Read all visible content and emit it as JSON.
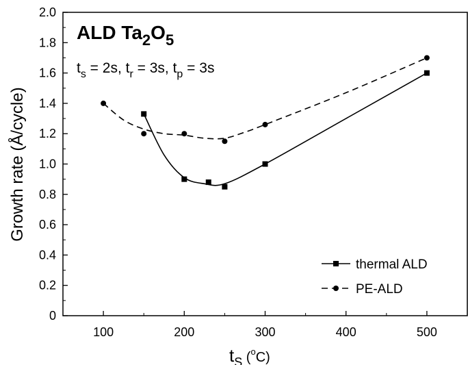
{
  "chart_data": {
    "type": "line",
    "title_main": "ALD Ta",
    "title_sub1": "2",
    "title_mid": "O",
    "title_sub2": "5",
    "params": {
      "ts_main": "t",
      "ts_sub": "s",
      "ts_val": " = 2s, ",
      "tr_main": "t",
      "tr_sub": "r",
      "tr_val": " = 3s, ",
      "tp_main": "t",
      "tp_sub": "p",
      "tp_val": " = 3s"
    },
    "ylabel": "Growth rate (Å/cycle)",
    "xlabel_main": "t",
    "xlabel_sub": "S",
    "xlabel_open": " (",
    "xlabel_deg": "o",
    "xlabel_unit": "C)",
    "xlim": [
      50,
      550
    ],
    "ylim": [
      0,
      2.0
    ],
    "x_ticks": [
      100,
      200,
      300,
      400,
      500
    ],
    "x_tick_labels": [
      "100",
      "200",
      "300",
      "400",
      "500"
    ],
    "y_ticks": [
      0,
      0.2,
      0.4,
      0.6,
      0.8,
      1.0,
      1.2,
      1.4,
      1.6,
      1.8,
      2.0
    ],
    "y_tick_labels": [
      "0",
      "0.2",
      "0.4",
      "0.6",
      "0.8",
      "1.0",
      "1.2",
      "1.4",
      "1.6",
      "1.8",
      "2.0"
    ],
    "legend_position": "bottom-right",
    "grid": false,
    "series": [
      {
        "name": "thermal ALD",
        "marker": "square",
        "line_style": "solid",
        "color": "#000000",
        "x": [
          150,
          200,
          230,
          250,
          300,
          500
        ],
        "y": [
          1.33,
          0.9,
          0.88,
          0.85,
          1.0,
          1.6
        ],
        "curve": [
          [
            150,
            1.33
          ],
          [
            175,
            1.06
          ],
          [
            200,
            0.91
          ],
          [
            225,
            0.87
          ],
          [
            250,
            0.87
          ],
          [
            300,
            1.0
          ],
          [
            400,
            1.3
          ],
          [
            500,
            1.6
          ]
        ]
      },
      {
        "name": "PE-ALD",
        "marker": "circle",
        "line_style": "dashed",
        "color": "#000000",
        "x": [
          100,
          150,
          200,
          250,
          300,
          500
        ],
        "y": [
          1.4,
          1.2,
          1.2,
          1.15,
          1.26,
          1.7
        ],
        "curve": [
          [
            100,
            1.4
          ],
          [
            125,
            1.29
          ],
          [
            150,
            1.23
          ],
          [
            175,
            1.2
          ],
          [
            200,
            1.19
          ],
          [
            225,
            1.17
          ],
          [
            250,
            1.17
          ],
          [
            275,
            1.21
          ],
          [
            300,
            1.26
          ],
          [
            400,
            1.47
          ],
          [
            500,
            1.7
          ]
        ]
      }
    ]
  }
}
